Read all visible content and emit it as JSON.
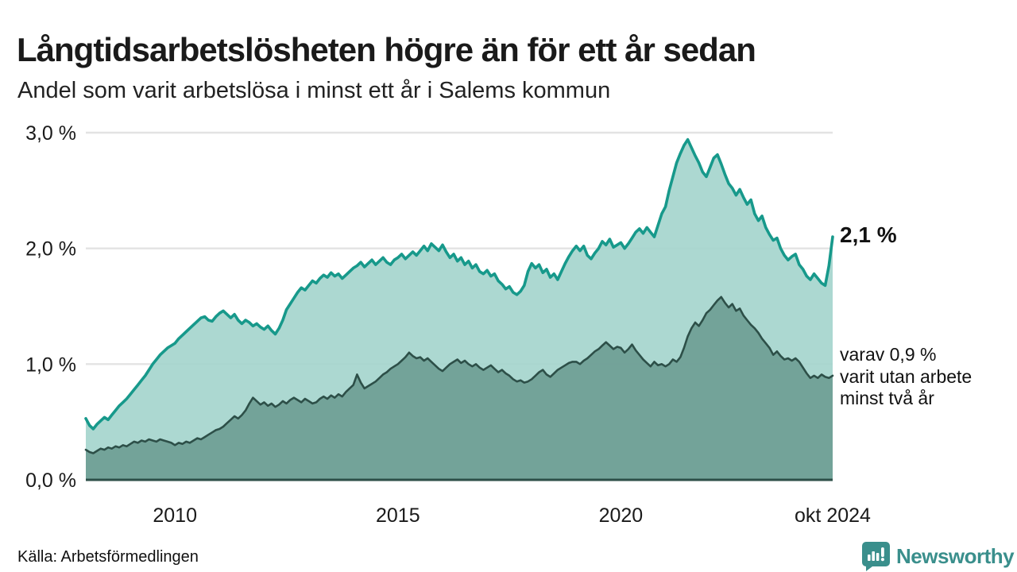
{
  "header": {
    "title": "Långtidsarbetslösheten högre än för ett år sedan",
    "subtitle": "Andel som varit arbetslösa i minst ett år i Salems kommun"
  },
  "annotations": {
    "end_total": "2,1 %",
    "end_two_years": "varav 0,9 %\nvarit utan arbete\nminst två år"
  },
  "footer": {
    "source": "Källa: Arbetsförmedlingen",
    "brand": "Newsworthy"
  },
  "colors": {
    "total_line": "#17998b",
    "total_fill": "#a3d4cc",
    "two_years_line": "#2d4f48",
    "two_years_fill": "#6f9e95",
    "grid": "#e3e3e3",
    "axis_text": "#1a1a1a",
    "brand_teal": "#3a8f8c"
  },
  "chart_data": {
    "type": "area",
    "title": "Långtidsarbetslösheten högre än för ett år sedan",
    "subtitle": "Andel som varit arbetslösa i minst ett år i Salems kommun",
    "x_start_year": 2008,
    "x_step_months": 1,
    "x_end_label": "okt 2024",
    "ylim": [
      0,
      3.0
    ],
    "grid": "horizontal",
    "y_ticks": [
      {
        "label": "3,0 %",
        "value": 3.0
      },
      {
        "label": "2,0 %",
        "value": 2.0
      },
      {
        "label": "1,0 %",
        "value": 1.0
      },
      {
        "label": "0,0 %",
        "value": 0.0
      }
    ],
    "x_ticks": [
      {
        "label": "2010",
        "year": 2010.0
      },
      {
        "label": "2015",
        "year": 2015.0
      },
      {
        "label": "2020",
        "year": 2020.0
      },
      {
        "label": "okt 2024",
        "year": 2024.75
      }
    ],
    "series": [
      {
        "name": "unemployed_at_least_one_year",
        "end_label": "2,1 %",
        "end_value": 2.1,
        "values": [
          0.53,
          0.47,
          0.44,
          0.48,
          0.51,
          0.54,
          0.52,
          0.56,
          0.6,
          0.64,
          0.67,
          0.7,
          0.74,
          0.78,
          0.82,
          0.86,
          0.9,
          0.95,
          1.0,
          1.04,
          1.08,
          1.11,
          1.14,
          1.16,
          1.18,
          1.22,
          1.25,
          1.28,
          1.31,
          1.34,
          1.37,
          1.4,
          1.41,
          1.38,
          1.37,
          1.41,
          1.44,
          1.46,
          1.43,
          1.4,
          1.43,
          1.38,
          1.35,
          1.38,
          1.36,
          1.33,
          1.35,
          1.32,
          1.3,
          1.33,
          1.29,
          1.26,
          1.31,
          1.38,
          1.47,
          1.52,
          1.57,
          1.62,
          1.66,
          1.64,
          1.68,
          1.72,
          1.7,
          1.74,
          1.77,
          1.75,
          1.79,
          1.76,
          1.78,
          1.74,
          1.77,
          1.8,
          1.83,
          1.85,
          1.88,
          1.84,
          1.87,
          1.9,
          1.86,
          1.89,
          1.92,
          1.88,
          1.86,
          1.9,
          1.92,
          1.95,
          1.91,
          1.94,
          1.97,
          1.94,
          1.98,
          2.02,
          1.98,
          2.04,
          2.01,
          1.98,
          2.03,
          1.97,
          1.92,
          1.95,
          1.89,
          1.92,
          1.86,
          1.89,
          1.83,
          1.86,
          1.8,
          1.78,
          1.81,
          1.76,
          1.78,
          1.72,
          1.69,
          1.65,
          1.67,
          1.62,
          1.6,
          1.63,
          1.68,
          1.8,
          1.87,
          1.83,
          1.86,
          1.79,
          1.82,
          1.75,
          1.78,
          1.73,
          1.8,
          1.87,
          1.93,
          1.98,
          2.02,
          1.98,
          2.02,
          1.94,
          1.91,
          1.96,
          2.0,
          2.06,
          2.03,
          2.08,
          2.01,
          2.03,
          2.05,
          2.0,
          2.04,
          2.09,
          2.14,
          2.17,
          2.13,
          2.18,
          2.14,
          2.1,
          2.2,
          2.3,
          2.36,
          2.5,
          2.62,
          2.74,
          2.82,
          2.89,
          2.94,
          2.87,
          2.8,
          2.74,
          2.66,
          2.62,
          2.7,
          2.78,
          2.81,
          2.73,
          2.64,
          2.56,
          2.52,
          2.46,
          2.51,
          2.44,
          2.38,
          2.42,
          2.3,
          2.24,
          2.28,
          2.18,
          2.12,
          2.07,
          2.09,
          2.0,
          1.94,
          1.9,
          1.93,
          1.95,
          1.86,
          1.82,
          1.76,
          1.73,
          1.78,
          1.74,
          1.7,
          1.68,
          1.85,
          2.1
        ]
      },
      {
        "name": "unemployed_at_least_two_years",
        "end_label": "varav 0,9 % varit utan arbete minst två år",
        "end_value": 0.9,
        "values": [
          0.26,
          0.24,
          0.23,
          0.25,
          0.27,
          0.26,
          0.28,
          0.27,
          0.29,
          0.28,
          0.3,
          0.29,
          0.31,
          0.33,
          0.32,
          0.34,
          0.33,
          0.35,
          0.34,
          0.33,
          0.35,
          0.34,
          0.33,
          0.32,
          0.3,
          0.32,
          0.31,
          0.33,
          0.32,
          0.34,
          0.36,
          0.35,
          0.37,
          0.39,
          0.41,
          0.43,
          0.44,
          0.46,
          0.49,
          0.52,
          0.55,
          0.53,
          0.56,
          0.6,
          0.66,
          0.71,
          0.68,
          0.65,
          0.67,
          0.64,
          0.66,
          0.63,
          0.65,
          0.68,
          0.66,
          0.69,
          0.71,
          0.69,
          0.67,
          0.7,
          0.68,
          0.66,
          0.67,
          0.7,
          0.72,
          0.7,
          0.73,
          0.71,
          0.74,
          0.72,
          0.76,
          0.79,
          0.82,
          0.91,
          0.84,
          0.79,
          0.81,
          0.83,
          0.85,
          0.88,
          0.91,
          0.93,
          0.96,
          0.98,
          1.0,
          1.03,
          1.06,
          1.1,
          1.07,
          1.05,
          1.06,
          1.03,
          1.05,
          1.02,
          0.99,
          0.96,
          0.94,
          0.97,
          1.0,
          1.02,
          1.04,
          1.01,
          1.03,
          1.0,
          0.98,
          1.0,
          0.97,
          0.95,
          0.97,
          0.99,
          0.96,
          0.93,
          0.95,
          0.92,
          0.9,
          0.87,
          0.85,
          0.86,
          0.84,
          0.85,
          0.87,
          0.9,
          0.93,
          0.95,
          0.91,
          0.89,
          0.92,
          0.95,
          0.97,
          0.99,
          1.01,
          1.02,
          1.02,
          1.0,
          1.03,
          1.05,
          1.08,
          1.11,
          1.13,
          1.16,
          1.19,
          1.16,
          1.13,
          1.15,
          1.14,
          1.1,
          1.13,
          1.17,
          1.12,
          1.08,
          1.04,
          1.01,
          0.98,
          1.02,
          0.99,
          1.0,
          0.98,
          1.0,
          1.04,
          1.02,
          1.06,
          1.14,
          1.24,
          1.31,
          1.36,
          1.33,
          1.38,
          1.44,
          1.47,
          1.51,
          1.55,
          1.58,
          1.53,
          1.49,
          1.52,
          1.46,
          1.48,
          1.42,
          1.38,
          1.34,
          1.31,
          1.27,
          1.22,
          1.18,
          1.14,
          1.08,
          1.11,
          1.07,
          1.04,
          1.05,
          1.03,
          1.05,
          1.02,
          0.97,
          0.92,
          0.88,
          0.9,
          0.88,
          0.91,
          0.89,
          0.88,
          0.9
        ]
      }
    ]
  }
}
